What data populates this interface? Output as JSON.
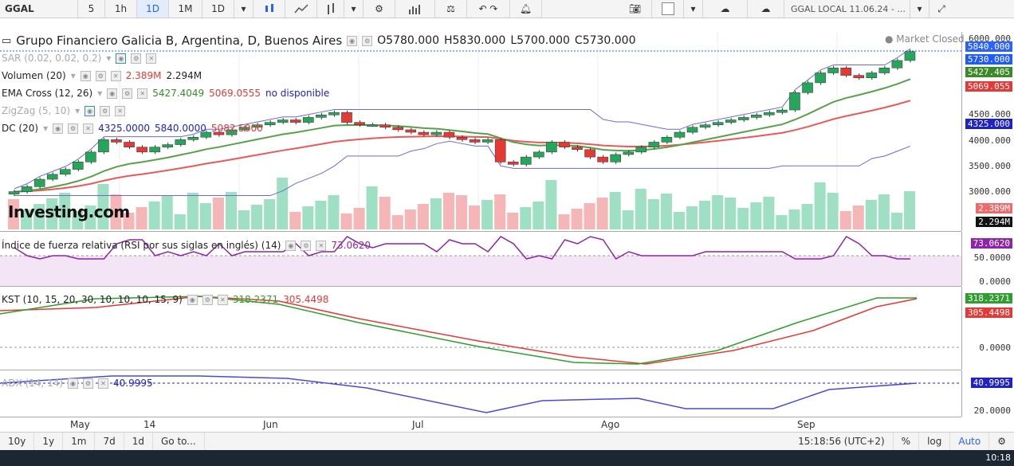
{
  "toolbar": {
    "symbol": "GGAL",
    "intervals": [
      "5",
      "1h",
      "1D",
      "1M",
      "1D"
    ],
    "selected_interval": "1D",
    "instrument": "GGAL LOCAL 11.06.24 - ..."
  },
  "header": {
    "title": "Grupo Financiero Galicia B, Argentina, D, Buenos Aires",
    "o": "O5780.000",
    "h": "H5830.000",
    "l": "L5700.000",
    "c": "C5730.000",
    "market": "Market Closed"
  },
  "legends": {
    "sar": "SAR (0.02, 0.02, 0.2)",
    "vol": "Volumen (20)",
    "vol_v1": "2.389M",
    "vol_v2": "2.294M",
    "ema": "EMA Cross (12, 26)",
    "ema_v1": "5427.4049",
    "ema_v2": "5069.0555",
    "ema_v3": "no disponible",
    "zz": "ZigZag (5, 10)",
    "dc": "DC (20)",
    "dc_v1": "4325.0000",
    "dc_v2": "5840.0000",
    "dc_v3": "5082.5000",
    "rsi": "Índice de fuerza relativa (RSI por sus siglas en inglés) (14)",
    "rsi_v": "73.0620",
    "kst": "KST (10, 15, 20, 30, 10, 10, 10, 15, 9)",
    "kst_v1": "318.2371",
    "kst_v2": "305.4498",
    "adx": "ADX (14, 14)",
    "adx_v": "40.9995"
  },
  "price_axis": {
    "ticks": [
      "6000.000",
      "4500.000",
      "4000.000",
      "3500.000",
      "3000.000"
    ],
    "tags": {
      "t1": "5840.000",
      "t2": "5730.000",
      "t3": "5427.405",
      "t4": "5069.055",
      "t5": "4325.000",
      "t6": "2.389M",
      "t7": "2.294M"
    }
  },
  "rsi_axis": {
    "tag": "73.0620",
    "ticks": [
      "50.0000",
      "0.0000"
    ]
  },
  "kst_axis": {
    "t1": "318.2371",
    "t2": "305.4498",
    "tick": "0.0000"
  },
  "adx_axis": {
    "tag": "40.9995",
    "tick": "20.0000"
  },
  "x_labels": [
    "May",
    "14",
    "Jun",
    "Jul",
    "Ago",
    "Sep"
  ],
  "bottom": {
    "ranges": [
      "10y",
      "1y",
      "1m",
      "7d",
      "1d",
      "Go to..."
    ],
    "time": "15:18:56 (UTC+2)",
    "pct": "%",
    "log": "log",
    "auto": "Auto"
  },
  "watermark": "Investing.com",
  "clock": "10:18",
  "chart_data": {
    "type": "candlestick",
    "series_close": [
      2900,
      3000,
      3150,
      3250,
      3350,
      3500,
      3700,
      3950,
      3900,
      3800,
      3700,
      3800,
      3850,
      3950,
      4000,
      4100,
      4050,
      4150,
      4200,
      4250,
      4300,
      4350,
      4300,
      4400,
      4450,
      4500,
      4300,
      4250,
      4250,
      4200,
      4150,
      4100,
      4050,
      4100,
      4000,
      3950,
      3900,
      3950,
      3500,
      3450,
      3600,
      3700,
      3900,
      3800,
      3750,
      3600,
      3500,
      3650,
      3700,
      3800,
      3900,
      4000,
      4100,
      4200,
      4250,
      4300,
      4350,
      4400,
      4450,
      4500,
      4550,
      4900,
      5100,
      5300,
      5400,
      5250,
      5200,
      5300,
      5400,
      5550,
      5730
    ],
    "ylim": [
      2700,
      6000
    ]
  }
}
